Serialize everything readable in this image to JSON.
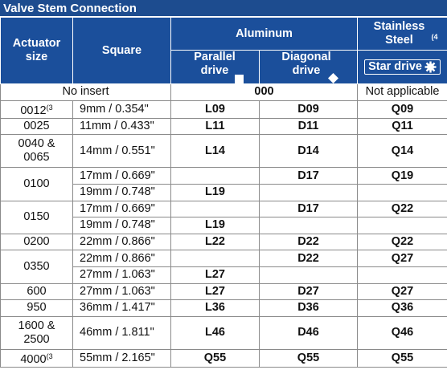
{
  "title": "Valve Stem Connection",
  "header": {
    "actuator_size": "Actuator size",
    "square": "Square",
    "aluminum": "Aluminum",
    "stainless": {
      "text": "Stainless Steel",
      "note": "(4"
    },
    "parallel": "Parallel drive",
    "diagonal": "Diagonal drive",
    "star": "Star drive"
  },
  "no_insert": {
    "label": "No insert",
    "aluminum": "000",
    "stainless": "Not applicable"
  },
  "groups": [
    {
      "size": "0012",
      "note": "(3",
      "rows": [
        [
          "9mm / 0.354\"",
          "L09",
          "D09",
          "Q09"
        ]
      ]
    },
    {
      "size": "0025",
      "rows": [
        [
          "11mm / 0.433\"",
          "L11",
          "D11",
          "Q11"
        ]
      ]
    },
    {
      "size": "0040 & 0065",
      "rows": [
        [
          "14mm / 0.551\"",
          "L14",
          "D14",
          "Q14"
        ]
      ]
    },
    {
      "size": "0100",
      "rows": [
        [
          "17mm / 0.669\"",
          null,
          "D17",
          "Q19"
        ],
        [
          "19mm / 0.748\"",
          "L19",
          null,
          null
        ]
      ]
    },
    {
      "size": "0150",
      "rows": [
        [
          "17mm / 0.669\"",
          null,
          "D17",
          "Q22"
        ],
        [
          "19mm / 0.748\"",
          "L19",
          null,
          null
        ]
      ]
    },
    {
      "size": "0200",
      "rows": [
        [
          "22mm / 0.866\"",
          "L22",
          "D22",
          "Q22"
        ]
      ]
    },
    {
      "size": "0350",
      "rows": [
        [
          "22mm / 0.866\"",
          null,
          "D22",
          "Q27"
        ],
        [
          "27mm / 1.063\"",
          "L27",
          null,
          null
        ]
      ]
    },
    {
      "size": "600",
      "rows": [
        [
          "27mm / 1.063\"",
          "L27",
          "D27",
          "Q27"
        ]
      ]
    },
    {
      "size": "950",
      "rows": [
        [
          "36mm / 1.417\"",
          "L36",
          "D36",
          "Q36"
        ]
      ]
    },
    {
      "size": "1600 & 2500",
      "rows": [
        [
          "46mm / 1.811\"",
          "L46",
          "D46",
          "Q46"
        ]
      ]
    },
    {
      "size": "4000",
      "note": "(3",
      "rows": [
        [
          "55mm / 2.165\"",
          "Q55",
          "Q55",
          "Q55"
        ]
      ]
    }
  ]
}
